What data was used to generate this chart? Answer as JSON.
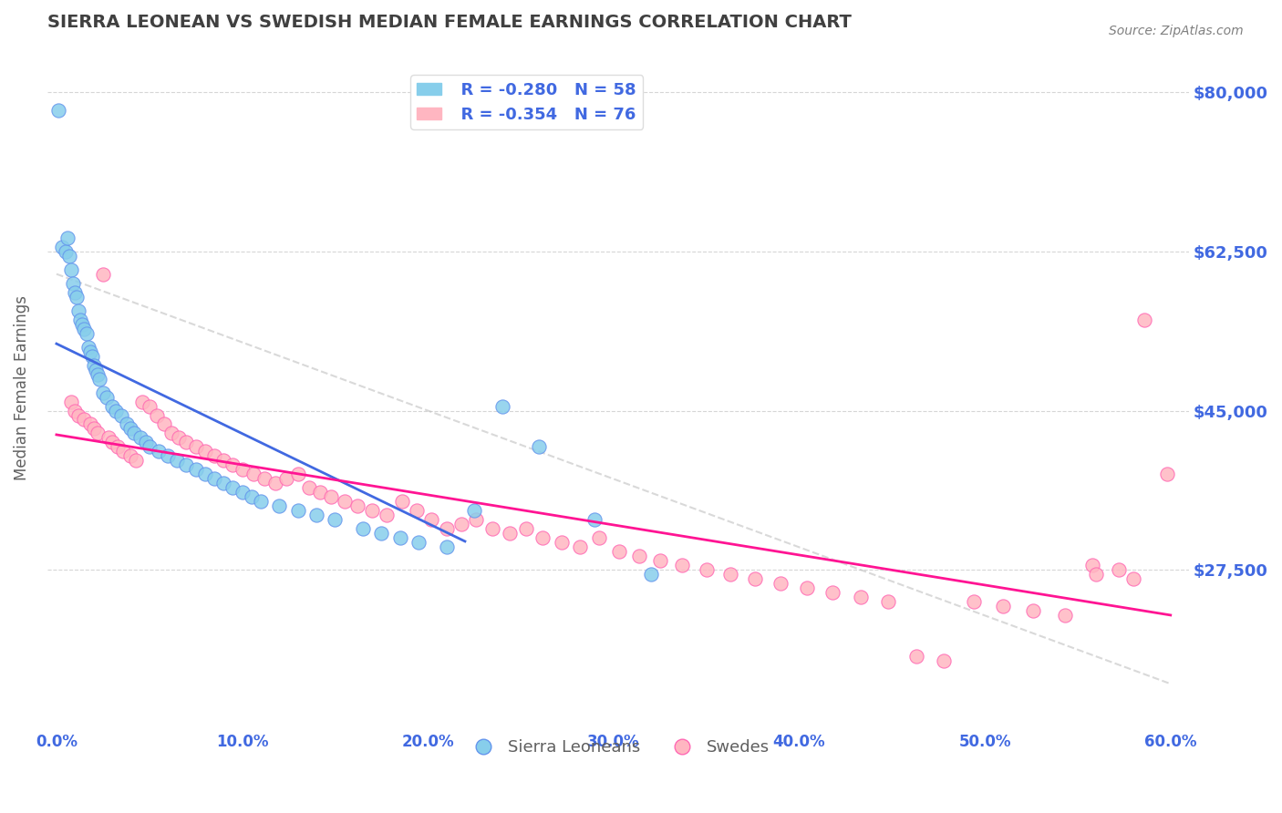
{
  "title": "SIERRA LEONEAN VS SWEDISH MEDIAN FEMALE EARNINGS CORRELATION CHART",
  "source": "Source: ZipAtlas.com",
  "xlabel": "",
  "ylabel": "Median Female Earnings",
  "xmin": 0.0,
  "xmax": 0.6,
  "ymin": 10000,
  "ymax": 85000,
  "yticks": [
    80000,
    62500,
    45000,
    27500
  ],
  "ytick_labels": [
    "$80,000",
    "$62,500",
    "$45,000",
    "$27,500"
  ],
  "xticks": [
    0.0,
    0.1,
    0.2,
    0.3,
    0.4,
    0.5,
    0.6
  ],
  "xtick_labels": [
    "0.0%",
    "10.0%",
    "20.0%",
    "30.0%",
    "40.0%",
    "50.0%",
    "60.0%"
  ],
  "blue_color": "#87CEEB",
  "pink_color": "#FFB6C1",
  "blue_edge": "#6495ED",
  "pink_edge": "#FF69B4",
  "trend_blue": "#4169E1",
  "trend_pink": "#FF1493",
  "trend_dashed": "#C0C0C0",
  "legend_R1": "R = -0.280",
  "legend_N1": "N = 58",
  "legend_R2": "R = -0.354",
  "legend_N2": "N = 76",
  "label1": "Sierra Leoneans",
  "label2": "Swedes",
  "title_color": "#404040",
  "axis_color": "#4169E1",
  "blue_scatter_x": [
    0.001,
    0.003,
    0.005,
    0.006,
    0.007,
    0.008,
    0.009,
    0.01,
    0.011,
    0.012,
    0.013,
    0.014,
    0.015,
    0.016,
    0.017,
    0.018,
    0.019,
    0.02,
    0.021,
    0.022,
    0.023,
    0.025,
    0.027,
    0.03,
    0.032,
    0.035,
    0.038,
    0.04,
    0.042,
    0.045,
    0.048,
    0.05,
    0.055,
    0.06,
    0.065,
    0.07,
    0.075,
    0.08,
    0.085,
    0.09,
    0.095,
    0.1,
    0.105,
    0.11,
    0.12,
    0.13,
    0.14,
    0.15,
    0.165,
    0.175,
    0.185,
    0.195,
    0.21,
    0.225,
    0.24,
    0.26,
    0.29,
    0.32
  ],
  "blue_scatter_y": [
    78000,
    63000,
    62500,
    64000,
    62000,
    60500,
    59000,
    58000,
    57500,
    56000,
    55000,
    54500,
    54000,
    53500,
    52000,
    51500,
    51000,
    50000,
    49500,
    49000,
    48500,
    47000,
    46500,
    45500,
    45000,
    44500,
    43500,
    43000,
    42500,
    42000,
    41500,
    41000,
    40500,
    40000,
    39500,
    39000,
    38500,
    38000,
    37500,
    37000,
    36500,
    36000,
    35500,
    35000,
    34500,
    34000,
    33500,
    33000,
    32000,
    31500,
    31000,
    30500,
    30000,
    34000,
    45500,
    41000,
    33000,
    27000
  ],
  "pink_scatter_x": [
    0.008,
    0.01,
    0.012,
    0.015,
    0.018,
    0.02,
    0.022,
    0.025,
    0.028,
    0.03,
    0.033,
    0.036,
    0.04,
    0.043,
    0.046,
    0.05,
    0.054,
    0.058,
    0.062,
    0.066,
    0.07,
    0.075,
    0.08,
    0.085,
    0.09,
    0.095,
    0.1,
    0.106,
    0.112,
    0.118,
    0.124,
    0.13,
    0.136,
    0.142,
    0.148,
    0.155,
    0.162,
    0.17,
    0.178,
    0.186,
    0.194,
    0.202,
    0.21,
    0.218,
    0.226,
    0.235,
    0.244,
    0.253,
    0.262,
    0.272,
    0.282,
    0.292,
    0.303,
    0.314,
    0.325,
    0.337,
    0.35,
    0.363,
    0.376,
    0.39,
    0.404,
    0.418,
    0.433,
    0.448,
    0.463,
    0.478,
    0.494,
    0.51,
    0.526,
    0.543,
    0.558,
    0.572,
    0.586,
    0.598,
    0.56,
    0.58
  ],
  "pink_scatter_y": [
    46000,
    45000,
    44500,
    44000,
    43500,
    43000,
    42500,
    60000,
    42000,
    41500,
    41000,
    40500,
    40000,
    39500,
    46000,
    45500,
    44500,
    43500,
    42500,
    42000,
    41500,
    41000,
    40500,
    40000,
    39500,
    39000,
    38500,
    38000,
    37500,
    37000,
    37500,
    38000,
    36500,
    36000,
    35500,
    35000,
    34500,
    34000,
    33500,
    35000,
    34000,
    33000,
    32000,
    32500,
    33000,
    32000,
    31500,
    32000,
    31000,
    30500,
    30000,
    31000,
    29500,
    29000,
    28500,
    28000,
    27500,
    27000,
    26500,
    26000,
    25500,
    25000,
    24500,
    24000,
    18000,
    17500,
    24000,
    23500,
    23000,
    22500,
    28000,
    27500,
    55000,
    38000,
    27000,
    26500
  ]
}
